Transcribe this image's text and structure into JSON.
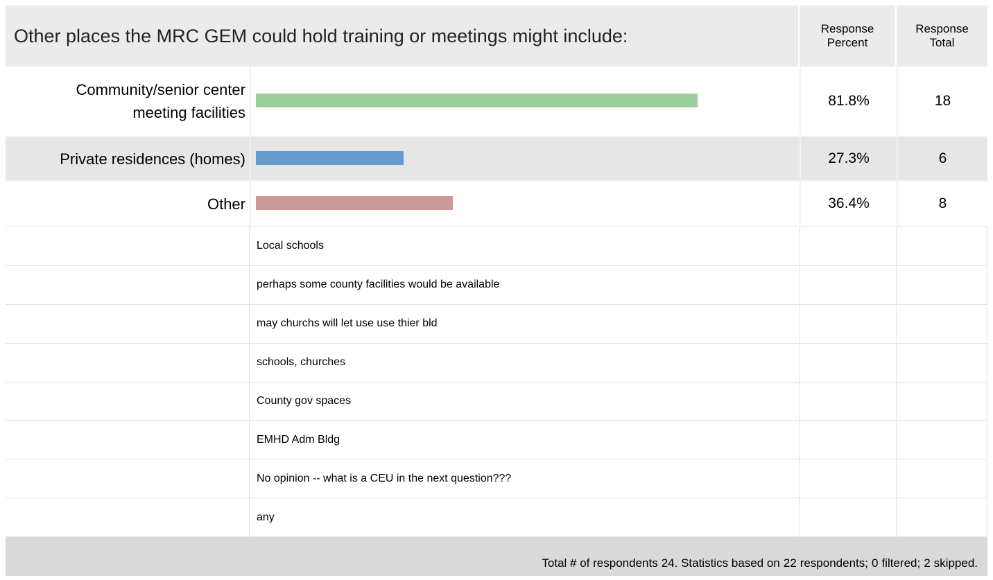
{
  "header": {
    "title": "Other places the MRC GEM could hold training or meetings might include:",
    "percent_column": "Response Percent",
    "total_column": "Response Total"
  },
  "results": {
    "categories": [
      "Community/senior center meeting facilities",
      "Private residences (homes)",
      "Other"
    ],
    "values": [
      81.8,
      27.3,
      36.4
    ],
    "value_labels": [
      "81.8%",
      "27.3%",
      "36.4%"
    ],
    "totals": [
      18,
      6,
      8
    ],
    "colors": [
      "#9ccf9c",
      "#6699cc",
      "#cc9999"
    ],
    "xlim": [
      0,
      100
    ]
  },
  "comments": [
    "Local schools",
    "perhaps some county facilities would be available",
    "may churchs will let use use thier bld",
    "schools, churches",
    "County gov spaces",
    "EMHD Adm Bldg",
    "No opinion -- what is a CEU in the next question???",
    "any"
  ],
  "footer": {
    "respondents_label": "Total # of respondents",
    "respondents": 24,
    "based_label": ". Statistics based on",
    "based": 22,
    "based_suffix": "respondents;",
    "filtered": 0,
    "filtered_label": "filtered;",
    "skipped": 2,
    "skipped_label": "skipped."
  }
}
